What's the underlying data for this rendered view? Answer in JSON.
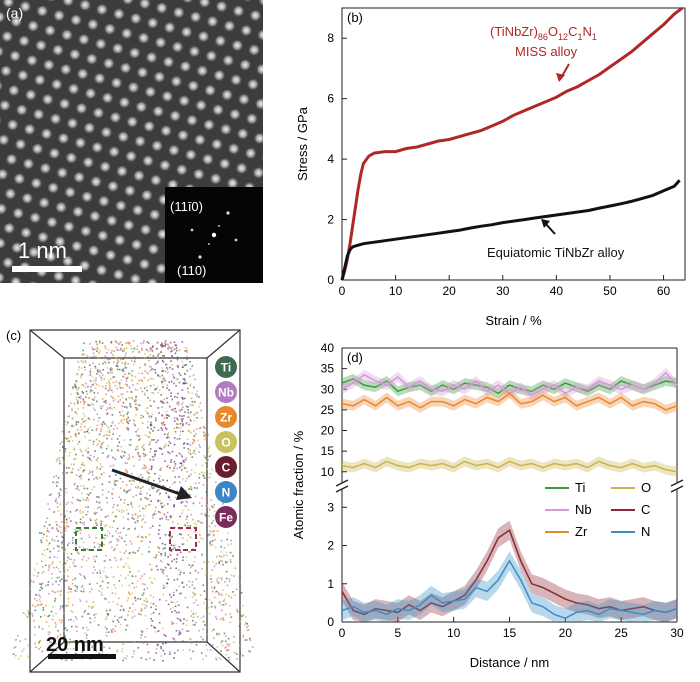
{
  "panel_a": {
    "label": "(a)",
    "scale_bar": "1 nm",
    "inset_labels": [
      "(11ī0)",
      "(110)"
    ]
  },
  "panel_b": {
    "label": "(b)",
    "annotation_miss": "(TiNbZr)86O12C1N1",
    "annotation_miss_line2": "MISS alloy",
    "annotation_eq": "Equiatomic TiNbZr alloy",
    "colors": {
      "miss": "#b02727",
      "eq": "#111111"
    }
  },
  "panel_c": {
    "label": "(c)",
    "scale_bar": "20 nm",
    "legend": [
      {
        "symbol": "Ti",
        "color": "#3f6a52"
      },
      {
        "symbol": "Nb",
        "color": "#b27bbf"
      },
      {
        "symbol": "Zr",
        "color": "#e9872d"
      },
      {
        "symbol": "O",
        "color": "#c9c25e"
      },
      {
        "symbol": "C",
        "color": "#6b1f2d"
      },
      {
        "symbol": "N",
        "color": "#3a86c6"
      },
      {
        "symbol": "Fe",
        "color": "#7a2b5b"
      }
    ]
  },
  "panel_d": {
    "label": "(d)"
  },
  "chart_data": [
    {
      "panel": "(b)",
      "type": "line",
      "xlabel": "Strain / %",
      "ylabel": "Stress / GPa",
      "xlim": [
        0,
        64
      ],
      "ylim": [
        0,
        9
      ],
      "xticks": [
        0,
        10,
        20,
        30,
        40,
        50,
        60
      ],
      "yticks": [
        0,
        2,
        4,
        6,
        8
      ],
      "series": [
        {
          "name": "(TiNbZr)86O12C1N1 MISS alloy",
          "color": "#b02727",
          "x": [
            0,
            0.5,
            1,
            1.5,
            2,
            2.5,
            3,
            3.5,
            4,
            5,
            6,
            8,
            10,
            12,
            14,
            16,
            18,
            20,
            22,
            24,
            26,
            28,
            30,
            32,
            34,
            36,
            38,
            40,
            42,
            44,
            46,
            48,
            50,
            52,
            54,
            56,
            58,
            60,
            62,
            63.5
          ],
          "y": [
            0,
            0.3,
            0.7,
            1.2,
            1.8,
            2.4,
            3.0,
            3.5,
            3.85,
            4.1,
            4.2,
            4.25,
            4.25,
            4.35,
            4.4,
            4.5,
            4.6,
            4.65,
            4.75,
            4.85,
            4.95,
            5.1,
            5.25,
            5.45,
            5.6,
            5.75,
            5.9,
            6.05,
            6.25,
            6.4,
            6.6,
            6.8,
            7.05,
            7.3,
            7.55,
            7.85,
            8.15,
            8.45,
            8.8,
            9.0
          ]
        },
        {
          "name": "Equiatomic TiNbZr alloy",
          "color": "#111111",
          "x": [
            0,
            0.5,
            1,
            1.5,
            2,
            3,
            4,
            6,
            8,
            10,
            12,
            14,
            16,
            18,
            20,
            22,
            24,
            26,
            28,
            30,
            32,
            34,
            36,
            38,
            40,
            42,
            44,
            46,
            48,
            50,
            52,
            54,
            56,
            58,
            60,
            62,
            63
          ],
          "y": [
            0,
            0.4,
            0.8,
            1.0,
            1.1,
            1.15,
            1.2,
            1.25,
            1.3,
            1.35,
            1.4,
            1.45,
            1.5,
            1.55,
            1.6,
            1.65,
            1.72,
            1.78,
            1.83,
            1.9,
            1.95,
            2.0,
            2.05,
            2.1,
            2.15,
            2.2,
            2.25,
            2.3,
            2.38,
            2.45,
            2.52,
            2.6,
            2.7,
            2.8,
            2.95,
            3.1,
            3.3
          ]
        }
      ]
    },
    {
      "panel": "(d)",
      "type": "line",
      "xlabel": "Distance / nm",
      "ylabel": "Atomic fraction / %",
      "xlim": [
        0,
        30
      ],
      "xticks": [
        0,
        5,
        10,
        15,
        20,
        25,
        30
      ],
      "upper_ylim": [
        8,
        40
      ],
      "upper_yticks": [
        10,
        15,
        20,
        25,
        30,
        35,
        40
      ],
      "lower_ylim": [
        0,
        3.4
      ],
      "lower_yticks": [
        0,
        1,
        2,
        3
      ],
      "x": [
        0,
        1,
        2,
        3,
        4,
        5,
        6,
        7,
        8,
        9,
        10,
        11,
        12,
        13,
        14,
        15,
        16,
        17,
        18,
        19,
        20,
        21,
        22,
        23,
        24,
        25,
        26,
        27,
        28,
        29,
        30
      ],
      "series": [
        {
          "name": "Ti",
          "color": "#3a9a3a",
          "axis": "upper",
          "values": [
            31.5,
            32.5,
            31,
            30.5,
            32,
            29.5,
            30.5,
            31,
            29.5,
            31,
            30,
            31.5,
            31,
            30.5,
            29,
            31,
            30,
            29.5,
            31,
            30,
            31.5,
            30.5,
            29.5,
            31,
            30,
            32,
            31,
            30,
            31,
            32,
            31.5
          ]
        },
        {
          "name": "Nb",
          "color": "#d49ad8",
          "axis": "upper",
          "values": [
            30,
            31.5,
            33.5,
            32,
            31,
            33,
            30.5,
            32,
            30,
            29.5,
            31,
            30,
            32,
            29.5,
            31,
            29,
            30.5,
            28.5,
            30,
            31,
            29,
            30.5,
            30,
            32,
            31,
            30,
            31,
            30,
            31.5,
            34,
            31
          ]
        },
        {
          "name": "Zr",
          "color": "#e9872d",
          "axis": "upper",
          "values": [
            26.5,
            26,
            27.5,
            26,
            28,
            26,
            27,
            25.5,
            27,
            27,
            26,
            27.5,
            26.5,
            28,
            27,
            29,
            26.5,
            27,
            28.5,
            27,
            28,
            26,
            27,
            28,
            26.5,
            28,
            26,
            27,
            26.5,
            25,
            26
          ]
        },
        {
          "name": "O",
          "color": "#c9b44a",
          "axis": "upper",
          "values": [
            11.5,
            11,
            12,
            11,
            12.5,
            11.5,
            11,
            12,
            11.5,
            12,
            11,
            12.5,
            11.5,
            12,
            11,
            12.5,
            11.5,
            12,
            11,
            12,
            11.5,
            12,
            11,
            12.5,
            11.5,
            11,
            12,
            11,
            11.5,
            10.5,
            10
          ]
        },
        {
          "name": "C",
          "color": "#8b2a35",
          "axis": "lower",
          "values": [
            0.8,
            0.3,
            0.2,
            0.35,
            0.3,
            0.25,
            0.45,
            0.3,
            0.5,
            0.4,
            0.55,
            0.7,
            1.1,
            1.6,
            2.2,
            2.4,
            1.6,
            1.0,
            0.9,
            0.75,
            0.6,
            0.5,
            0.45,
            0.35,
            0.4,
            0.3,
            0.35,
            0.4,
            0.3,
            0.25,
            0.35
          ]
        },
        {
          "name": "N",
          "color": "#3a8ec8",
          "axis": "lower",
          "values": [
            0.3,
            0.4,
            0.25,
            0.3,
            0.2,
            0.35,
            0.3,
            0.45,
            0.7,
            0.5,
            0.55,
            0.6,
            0.9,
            0.8,
            1.1,
            1.6,
            1.1,
            0.5,
            0.4,
            0.2,
            0.1,
            0.25,
            0.3,
            0.2,
            0.35,
            0.3,
            0.25,
            0.2,
            0.3,
            0.25,
            0.35
          ]
        }
      ]
    }
  ]
}
